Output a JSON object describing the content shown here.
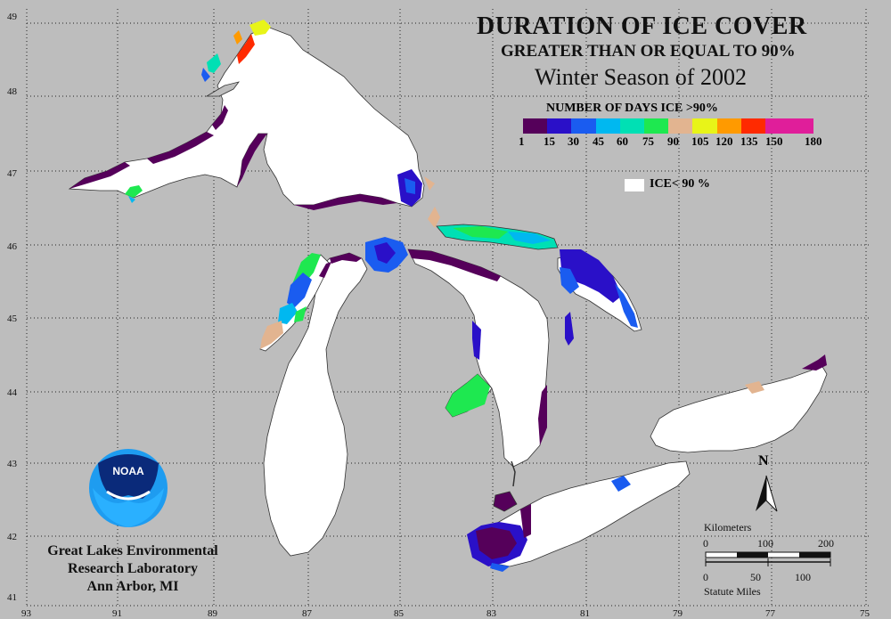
{
  "title": {
    "line1": "DURATION OF ICE COVER",
    "line2": "GREATER THAN OR EQUAL TO 90%",
    "line3": "Winter Season of 2002"
  },
  "legend": {
    "title": "NUMBER OF DAYS ICE >90%",
    "colors": [
      "#55005a",
      "#2a10c8",
      "#1a5cf0",
      "#00b8f0",
      "#00e0b4",
      "#1ee850",
      "#e2b490",
      "#e8f418",
      "#ff9a00",
      "#ff2a00",
      "#e01e9a",
      "#e01e9a"
    ],
    "labels": [
      "1",
      "15",
      "30",
      "45",
      "60",
      "75",
      "90",
      "105",
      "120",
      "135",
      "150",
      "180"
    ],
    "ice_label": "ICE< 90 %"
  },
  "axes": {
    "lat_labels": [
      "49",
      "48",
      "47",
      "46",
      "45",
      "44",
      "43",
      "42",
      "41"
    ],
    "lon_labels": [
      "93",
      "91",
      "89",
      "87",
      "85",
      "83",
      "81",
      "79",
      "77",
      "75"
    ]
  },
  "institution": {
    "logo_text": "NOAA",
    "line1": "Great Lakes Environmental",
    "line2": "Research Laboratory",
    "line3": "Ann Arbor, MI"
  },
  "scale": {
    "km_title": "Kilometers",
    "km_ticks": [
      "0",
      "100",
      "200"
    ],
    "mi_ticks": [
      "0",
      "50",
      "100"
    ],
    "mi_title": "Statute Miles",
    "north": "N"
  },
  "colors": {
    "background": "#bdbdbd",
    "lake": "#ffffff"
  }
}
